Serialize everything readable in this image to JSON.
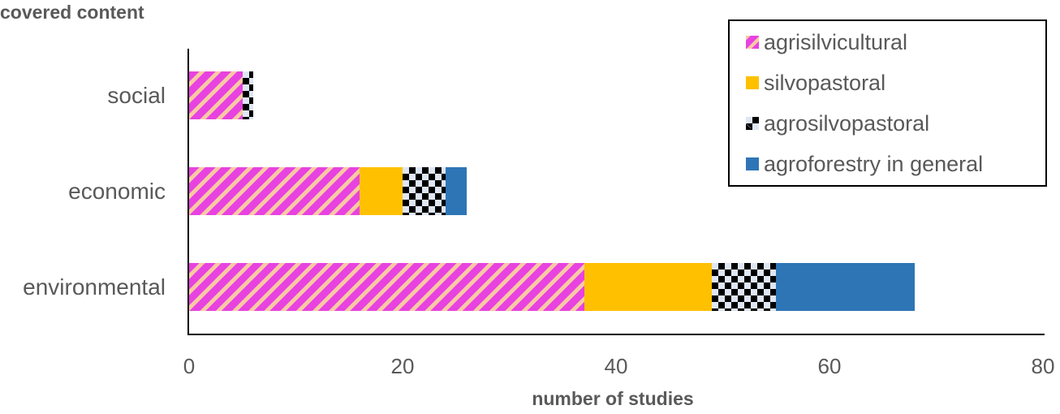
{
  "chart_data": {
    "type": "bar",
    "orientation": "horizontal",
    "stacked": true,
    "title": "",
    "ylabel": "covered content",
    "xlabel": "number of studies",
    "categories": [
      "social",
      "economic",
      "environmental"
    ],
    "series": [
      {
        "name": "agrisilvicultural",
        "values": [
          5,
          16,
          37
        ],
        "color": "#e842e0",
        "pattern": "diagonal-stripes-pink-peach"
      },
      {
        "name": "silvopastoral",
        "values": [
          0,
          4,
          12
        ],
        "color": "#ffc000",
        "pattern": "solid"
      },
      {
        "name": "agrosilvopastoral",
        "values": [
          1,
          4,
          6
        ],
        "color": "#000000",
        "pattern": "checkerboard-black-lightblue"
      },
      {
        "name": "agroforestry in general",
        "values": [
          0,
          2,
          13
        ],
        "color": "#2e75b6",
        "pattern": "solid"
      }
    ],
    "xlim": [
      0,
      80
    ],
    "xticks": [
      0,
      20,
      40,
      60,
      80
    ],
    "grid": false,
    "legend_position": "upper-right, inside"
  },
  "axis": {
    "ytitle": "covered content",
    "xtitle": "number of studies",
    "ticks": [
      "0",
      "20",
      "40",
      "60",
      "80"
    ]
  },
  "categories": {
    "social": "social",
    "economic": "economic",
    "environmental": "environmental"
  },
  "legend": {
    "items": [
      {
        "label": "agrisilvicultural"
      },
      {
        "label": "silvopastoral"
      },
      {
        "label": "agrosilvopastoral"
      },
      {
        "label": "agroforestry in general"
      }
    ]
  }
}
